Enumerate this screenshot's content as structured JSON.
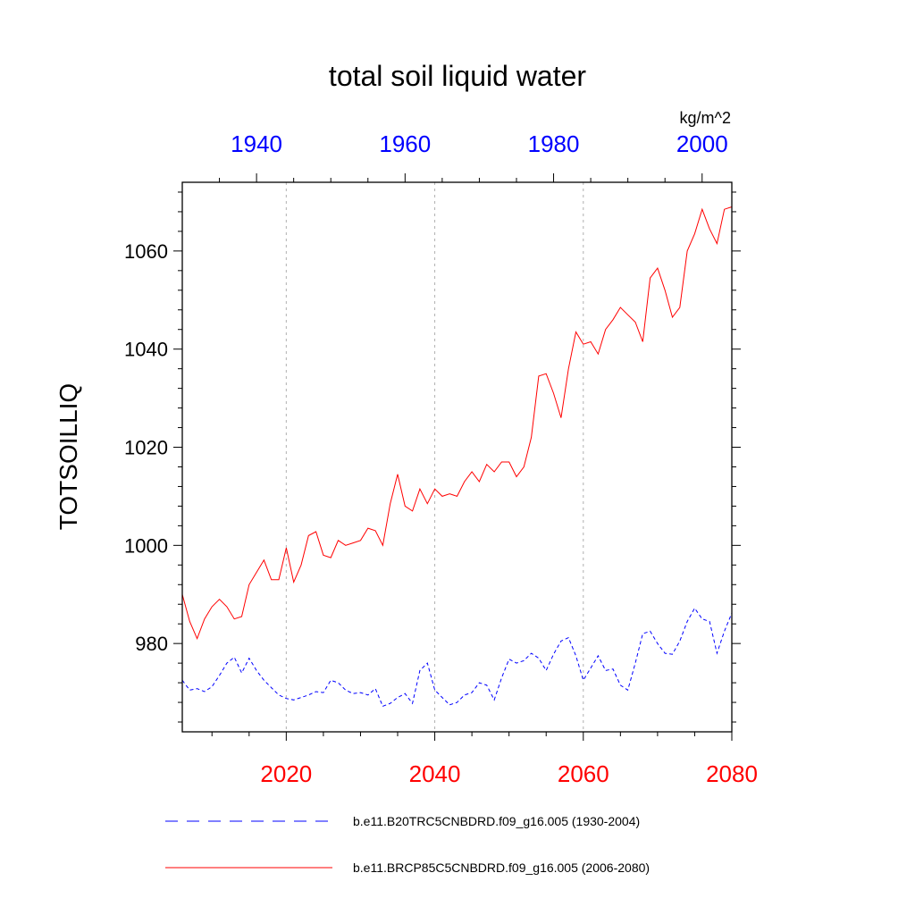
{
  "chart_data": {
    "type": "line",
    "title": "total soil liquid water",
    "units": "kg/m^2",
    "ylabel": "TOTSOILLIQ",
    "ylim": [
      962,
      1074
    ],
    "yticks": [
      980,
      1000,
      1020,
      1040,
      1060
    ],
    "x_bottom": {
      "range": [
        2006,
        2080
      ],
      "ticks": [
        2020,
        2040,
        2060,
        2080
      ],
      "color": "#ff0000"
    },
    "x_top": {
      "range": [
        1930,
        2004
      ],
      "ticks": [
        1940,
        1960,
        1980,
        2000
      ],
      "color": "#0000ff"
    },
    "grid_vertical_at_bottom_years": [
      2020,
      2040,
      2060
    ],
    "series": [
      {
        "name": "b.e11.B20TRC5CNBDRD.f09_g16.005 (1930-2004)",
        "color": "#0000ff",
        "dash": "dashed",
        "axis": "top",
        "x_start": 1930,
        "values": [
          972.5,
          970.5,
          970.8,
          970.2,
          971.2,
          973.5,
          976.0,
          977.2,
          974.0,
          977.0,
          974.5,
          972.5,
          971.0,
          969.5,
          968.8,
          968.5,
          969.0,
          969.5,
          970.2,
          970.0,
          972.5,
          972.0,
          970.5,
          969.8,
          970.0,
          969.5,
          970.8,
          967.2,
          967.8,
          969.0,
          969.8,
          967.8,
          974.5,
          976.0,
          970.5,
          969.0,
          967.5,
          968.0,
          969.5,
          970.0,
          972.0,
          971.5,
          968.5,
          973.0,
          976.8,
          976.0,
          976.5,
          978.0,
          977.0,
          974.5,
          977.8,
          980.5,
          981.2,
          977.5,
          972.5,
          975.0,
          977.5,
          974.5,
          974.8,
          971.5,
          970.5,
          976.0,
          982.0,
          982.5,
          980.0,
          978.0,
          977.8,
          980.5,
          984.5,
          987.2,
          985.0,
          984.5,
          978.0,
          982.5,
          986.2
        ]
      },
      {
        "name": "b.e11.BRCP85C5CNBDRD.f09_g16.005 (2006-2080)",
        "color": "#ff0000",
        "dash": "solid",
        "axis": "bottom",
        "x_start": 2006,
        "values": [
          990.0,
          984.5,
          981.0,
          985.0,
          987.5,
          989.0,
          987.5,
          985.0,
          985.5,
          992.0,
          994.5,
          997.0,
          993.0,
          993.0,
          999.5,
          992.5,
          996.0,
          1002.0,
          1002.8,
          998.0,
          997.5,
          1001.0,
          1000.0,
          1000.5,
          1001.0,
          1003.5,
          1003.0,
          1000.0,
          1008.5,
          1014.5,
          1008.0,
          1007.0,
          1011.5,
          1008.5,
          1011.5,
          1010.0,
          1010.5,
          1010.0,
          1013.0,
          1015.0,
          1013.0,
          1016.5,
          1015.0,
          1017.0,
          1017.0,
          1014.0,
          1016.0,
          1022.0,
          1034.5,
          1035.0,
          1031.0,
          1026.0,
          1036.0,
          1043.5,
          1041.0,
          1041.5,
          1039.0,
          1044.0,
          1046.0,
          1048.5,
          1047.0,
          1045.5,
          1041.5,
          1054.5,
          1056.5,
          1052.0,
          1046.5,
          1048.5,
          1060.0,
          1063.5,
          1068.5,
          1064.5,
          1061.5,
          1068.5,
          1069.0
        ]
      }
    ]
  }
}
